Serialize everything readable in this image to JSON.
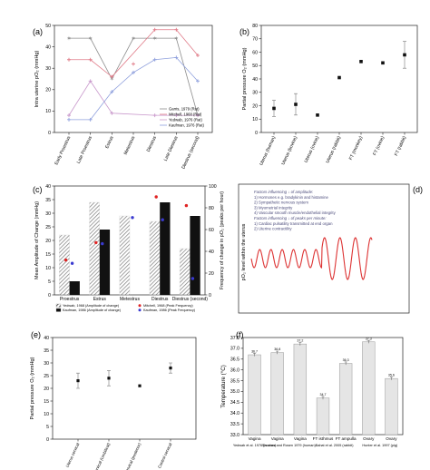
{
  "panels": {
    "a": {
      "letter": "(a)",
      "ylabel": "Intra uterine pO₂ (mmHg)",
      "type": "line",
      "categories": [
        "Early Proestrus",
        "Late Proestrus",
        "Estrus",
        "Metestrus",
        "Diestrus",
        "Late Diestrus",
        "Diestrus (second)"
      ],
      "ylim": [
        0,
        50
      ],
      "yticks": [
        0,
        10,
        20,
        30,
        40,
        50
      ],
      "series": [
        {
          "name": "Garris, 1979 (Rat)",
          "color": "#8c8c8c",
          "marker": "star",
          "values": [
            44,
            44,
            25,
            44,
            44,
            44,
            8
          ]
        },
        {
          "name": "Mitchell, 1968 (Rat)",
          "color": "#e07b88",
          "marker": "plus",
          "values": [
            34,
            34,
            26,
            null,
            48,
            48,
            36
          ]
        },
        {
          "name": "Yedwab, 1976 (Rat)",
          "color": "#c999cc",
          "marker": "plus",
          "values": [
            8,
            24,
            9,
            null,
            8,
            8,
            8
          ]
        },
        {
          "name": "Kaufman, 1976 (Rat)",
          "color": "#8fa0dd",
          "marker": "plus",
          "values": [
            6,
            6,
            19,
            28,
            34,
            35,
            24
          ]
        }
      ],
      "extra_points": [
        {
          "series": 1,
          "x": 3,
          "y": 32
        }
      ]
    },
    "b": {
      "letter": "(b)",
      "ylabel": "Partial pressure O₂ (mmHg)",
      "type": "scatter",
      "categories": [
        "Uterus (human)",
        "Uterus (bovine)",
        "Uterus (ovine)",
        "Uterus (rabbit)",
        "FT (monkey)",
        "FT (ovine)",
        "FT (rabbit)"
      ],
      "ylim": [
        0,
        80
      ],
      "yticks": [
        0,
        10,
        20,
        30,
        40,
        50,
        60,
        70,
        80
      ],
      "values": [
        18,
        21,
        13,
        41,
        53,
        52,
        58
      ],
      "errors": [
        6,
        8,
        0,
        0,
        0,
        0,
        10
      ]
    },
    "c": {
      "letter": "(c)",
      "ylabel": "Mean Amplitude of Change (mmHg)",
      "ylabel_right": "Frequency of change in pO₂ (peaks per hour)",
      "type": "bar",
      "categories": [
        "Proestrus",
        "Estrus",
        "Metestrus",
        "Diestrus",
        "Diestrus (second)"
      ],
      "ylim": [
        0,
        40
      ],
      "yticks": [
        0,
        5,
        10,
        15,
        20,
        25,
        30,
        35,
        40
      ],
      "ylim_right": [
        0,
        100
      ],
      "yticks_right": [
        0,
        20,
        40,
        60,
        80,
        100
      ],
      "series": [
        {
          "name": "Yedwab, 1968 (Amplitude of change)",
          "values": [
            22,
            34,
            29,
            27,
            17
          ]
        },
        {
          "name": "Kaufman, 1986 (Amplitude of change)",
          "values": [
            5,
            24,
            null,
            34,
            29
          ]
        }
      ],
      "points": [
        {
          "name": "Mitchell, 1968 (Peak Frequency)",
          "color": "#e02323",
          "values": [
            32,
            48,
            null,
            90,
            82
          ]
        },
        {
          "name": "Kaufman, 1986 (Peak Frequency)",
          "color": "#3a3ad0",
          "values": [
            29,
            47,
            71,
            69,
            15
          ]
        }
      ]
    },
    "d": {
      "letter": "(d)",
      "ylabel": "pO₂ level within the uterus",
      "text_lines": [
        "Factors influencing ↓ of amplitude:",
        "1) Hormones e.g. bradykinin and histamine",
        "2) Sympathetic nervous system",
        "3) Myometrial integrity",
        "4) Vascular smooth muscle/endothelial integrity",
        "Factors influencing ↓ of peaks per minute:",
        "1) Cardiac pulsatility transmitted at end organ",
        "2) Uterine contractility"
      ]
    },
    "e": {
      "letter": "(e)",
      "ylabel": "Partial pressure O₂ (mmHg)",
      "type": "scatter",
      "categories": [
        "Uterus cervical",
        "Cervical (Umbilical)",
        "Supracervical (posterior)",
        "Control cervical"
      ],
      "ylim": [
        0,
        40
      ],
      "yticks": [
        0,
        5,
        10,
        15,
        20,
        25,
        30,
        35,
        40
      ],
      "values": [
        23,
        24,
        21,
        28
      ],
      "errors": [
        3,
        3,
        0,
        2
      ]
    },
    "f": {
      "letter": "(f)",
      "ylabel": "Temperature (°C)",
      "type": "bar",
      "categories": [
        "Vagina",
        "Vagina",
        "Vagina",
        "FT isthmus",
        "FT ampulla",
        "Ovary",
        "Ovary"
      ],
      "groups": [
        "Yedwab et al. 1976 (human)",
        "Sanchez and Rosen 1979 (human)",
        "Bahat et al. 2005 (rabbit)",
        "Hunter et al. 1997 (pig)"
      ],
      "ylim": [
        33.0,
        37.5
      ],
      "yticks": [
        33.0,
        33.5,
        34.0,
        34.5,
        35.0,
        35.5,
        36.0,
        36.5,
        37.0,
        37.5
      ],
      "values": [
        36.7,
        36.8,
        37.2,
        34.7,
        36.3,
        37.3,
        35.6
      ],
      "data_labels": [
        "36.7",
        "36.8",
        "37.2",
        "34.7",
        "36.3",
        "37.3",
        "35.6"
      ]
    }
  },
  "colors": {
    "bar_gray": "#e5e5e5",
    "bar_hatch": "#111111",
    "wave": "#dd3333"
  }
}
